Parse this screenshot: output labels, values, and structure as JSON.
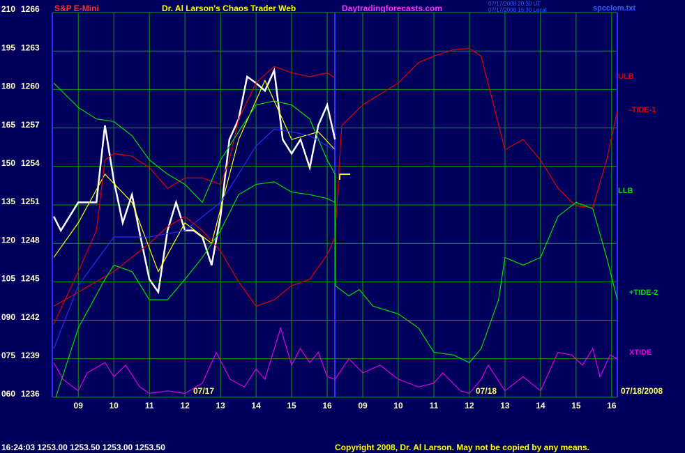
{
  "chart_data": {
    "type": "line",
    "symbol": "S&P E-Mini",
    "title": "Dr. Al Larson's Chaos Trader Web",
    "website": "Daytradingforecasts.com",
    "timestamps": [
      "07/17/2008 20:30 UT",
      "07/17/2008 15:30 Local"
    ],
    "file": "spcclom.txt",
    "date_labels": [
      "07/17",
      "07/18",
      "07/18/2008"
    ],
    "status": "16:24:03 1253.00 1253.50 1253.00 1253.50",
    "copyright": "Copyright 2008, Dr. Al Larson. May not be copied by any means.",
    "grid": true,
    "grid_color": "#00a000",
    "background": "#00005c",
    "xlim": [
      8.27,
      24.16
    ],
    "xticks": [
      {
        "value": 9,
        "label": "09"
      },
      10,
      11,
      12,
      13,
      14,
      15,
      16,
      {
        "value": 17,
        "label": "09"
      },
      {
        "value": 18,
        "label": "10"
      },
      {
        "value": 19,
        "label": "11"
      },
      {
        "value": 20,
        "label": "12"
      },
      {
        "value": 21,
        "label": "13"
      },
      {
        "value": 22,
        "label": "14"
      },
      {
        "value": 23,
        "label": "15"
      },
      {
        "value": 24,
        "label": "16"
      }
    ],
    "ylim": [
      1236,
      1266
    ],
    "yticks": [
      1236,
      1239,
      1242,
      1245,
      1248,
      1251,
      1254,
      1257,
      1260,
      1263,
      1266
    ],
    "y2lim": [
      60,
      210
    ],
    "y2ticks": [
      {
        "value": 60,
        "label": "060"
      },
      {
        "value": 75,
        "label": "075"
      },
      {
        "value": 90,
        "label": "090"
      },
      105,
      120,
      135,
      150,
      165,
      180,
      195,
      210
    ],
    "series": [
      {
        "color": "#ffffff",
        "x": [
          8.31,
          8.51,
          9,
          9.51,
          9.75,
          10,
          10.25,
          10.51,
          10.75,
          11,
          11.25,
          11.51,
          11.75,
          12,
          12.25,
          12.49,
          12.75,
          13,
          13.25,
          13.51,
          13.75,
          14,
          14.25,
          14.51,
          14.75,
          15,
          15.25,
          15.51,
          15.75,
          16,
          16.22
        ],
        "values": [
          1250.1,
          1249.0,
          1251.2,
          1251.2,
          1257.2,
          1252.9,
          1249.6,
          1251.8,
          1248.5,
          1245.2,
          1244.2,
          1249.0,
          1251.2,
          1249.0,
          1249.0,
          1248.5,
          1246.3,
          1250.1,
          1256.1,
          1257.7,
          1261.0,
          1260.5,
          1259.9,
          1261.5,
          1256.1,
          1255.0,
          1256.1,
          1253.9,
          1257.2,
          1258.8,
          1256.1
        ]
      },
      {
        "color": "#ffff00",
        "x": [
          8.31,
          9,
          9.75,
          10.51,
          11.25,
          12,
          12.75,
          13.51,
          14.25,
          15,
          15.75,
          16.22
        ],
        "values": [
          1246.9,
          1249.6,
          1253.4,
          1251.2,
          1245.8,
          1249.6,
          1248.0,
          1256.1,
          1260.7,
          1256.1,
          1256.7,
          1255.3
        ]
      },
      {
        "color": "#2a2aff",
        "x": [
          8.31,
          9,
          10,
          11,
          12,
          13,
          13.51,
          14,
          14.51,
          15,
          15.51,
          16,
          16.22
        ],
        "values": [
          1239.8,
          1244.7,
          1248.5,
          1248.5,
          1249.0,
          1251.2,
          1253.4,
          1255.6,
          1256.9,
          1256.7,
          1256.4,
          1255.6,
          1255.3
        ]
      },
      {
        "name": "ULB",
        "color": "#e00000",
        "x": [
          8.31,
          9,
          9.51,
          9.75,
          10,
          10.51,
          11,
          11.51,
          12,
          12.49,
          13,
          13.25,
          13.51,
          14,
          14.51,
          15,
          15.51,
          16,
          16.22
        ],
        "values": [
          1241.7,
          1245.8,
          1249.0,
          1254.5,
          1255.0,
          1254.8,
          1253.9,
          1252.3,
          1253.1,
          1253.1,
          1252.6,
          1254.5,
          1257.7,
          1260.5,
          1261.8,
          1261.3,
          1261.0,
          1261.3,
          1260.9
        ]
      },
      {
        "name": "-TIDE-1",
        "color": "#e00000",
        "x": [
          8.31,
          9,
          10,
          11,
          11.51,
          12,
          12.49,
          13,
          13.51,
          14,
          14.51,
          15,
          15.51,
          16,
          16.22,
          16.41,
          17,
          18,
          18.57,
          19,
          19.55,
          20,
          20.33,
          21,
          21.51,
          22,
          22.49,
          23,
          23.47,
          23.86,
          24.16
        ],
        "values": [
          1243.1,
          1244.2,
          1245.8,
          1248.0,
          1249.3,
          1250.1,
          1249.0,
          1247.4,
          1245.0,
          1243.1,
          1243.6,
          1244.7,
          1245.2,
          1247.1,
          1248.5,
          1257.2,
          1258.8,
          1260.5,
          1262.1,
          1262.6,
          1263.1,
          1263.2,
          1262.6,
          1255.3,
          1256.1,
          1254.5,
          1252.3,
          1250.9,
          1250.8,
          1254.5,
          1258.3
        ]
      },
      {
        "name": "LLB",
        "color": "#00e000",
        "x": [
          8.37,
          9,
          9.75,
          10,
          10.51,
          11,
          11.51,
          12,
          12.49,
          13,
          13.51,
          14,
          14.51,
          15,
          15.51,
          16,
          16.22
        ],
        "values": [
          1236.0,
          1241.4,
          1245.2,
          1246.3,
          1245.8,
          1243.6,
          1243.6,
          1245.2,
          1246.9,
          1249.0,
          1251.8,
          1252.6,
          1252.8,
          1252.0,
          1251.8,
          1251.5,
          1251.2
        ]
      },
      {
        "name": "+TIDE-2",
        "color": "#00e000",
        "x": [
          8.31,
          9,
          9.51,
          10,
          10.51,
          11,
          11.51,
          12,
          12.49,
          13,
          13.51,
          14,
          14.51,
          15,
          15.51,
          16,
          16.22,
          16.23,
          16.61,
          16.9,
          17.29,
          18,
          18.57,
          19,
          19.55,
          20,
          20.33,
          20.82,
          21,
          21.51,
          22,
          22.49,
          23,
          23.47,
          23.86,
          24.16
        ],
        "values": [
          1260.5,
          1258.6,
          1257.7,
          1257.5,
          1256.4,
          1254.5,
          1253.4,
          1252.6,
          1251.2,
          1254.5,
          1256.7,
          1258.8,
          1259.1,
          1258.8,
          1257.7,
          1254.5,
          1253.4,
          1244.7,
          1243.9,
          1244.4,
          1243.1,
          1242.5,
          1241.4,
          1239.5,
          1239.3,
          1238.7,
          1239.8,
          1243.6,
          1246.9,
          1246.3,
          1246.9,
          1250.1,
          1251.2,
          1250.7,
          1246.9,
          1243.6
        ]
      },
      {
        "name": "XTIDE",
        "color": "#e000e0",
        "x": [
          8.31,
          8.57,
          9,
          9.25,
          9.75,
          10,
          10.33,
          10.73,
          11,
          11.51,
          12,
          12.49,
          12.88,
          13.27,
          13.67,
          14,
          14.25,
          14.69,
          15,
          15.24,
          15.51,
          15.75,
          16,
          16.22,
          16.61,
          17,
          17.49,
          18,
          18.57,
          19,
          19.25,
          19.75,
          20,
          20.33,
          20.53,
          21,
          21.51,
          22,
          22.49,
          22.88,
          23.18,
          23.47,
          23.67,
          23.96,
          24.16
        ],
        "values": [
          1238.7,
          1237.4,
          1236.5,
          1237.9,
          1238.7,
          1237.6,
          1238.5,
          1236.8,
          1236.3,
          1236.5,
          1236.3,
          1237.1,
          1239.5,
          1237.4,
          1236.8,
          1238.2,
          1237.4,
          1241.4,
          1238.5,
          1239.8,
          1238.7,
          1239.5,
          1237.6,
          1237.4,
          1239.0,
          1237.9,
          1238.5,
          1237.4,
          1236.8,
          1237.1,
          1237.9,
          1236.5,
          1236.3,
          1237.4,
          1238.5,
          1236.5,
          1237.6,
          1236.5,
          1239.5,
          1239.3,
          1238.5,
          1239.8,
          1237.6,
          1239.3,
          1239.0
        ]
      }
    ]
  }
}
